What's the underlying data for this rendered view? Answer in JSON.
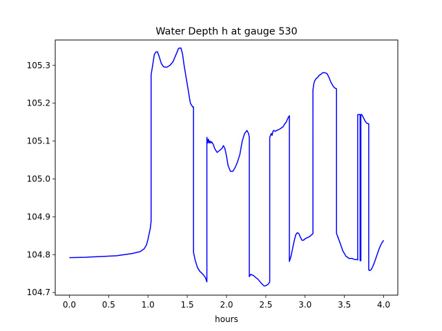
{
  "chart_data": {
    "type": "line",
    "title": "Water Depth h at gauge 530",
    "xlabel": "hours",
    "ylabel": "",
    "xlim": [
      -0.18,
      4.18
    ],
    "ylim": [
      104.693,
      105.367
    ],
    "xticks": [
      0.0,
      0.5,
      1.0,
      1.5,
      2.0,
      2.5,
      3.0,
      3.5,
      4.0
    ],
    "xtick_labels": [
      "0.0",
      "0.5",
      "1.0",
      "1.5",
      "2.0",
      "2.5",
      "3.0",
      "3.5",
      "4.0"
    ],
    "yticks": [
      104.7,
      104.8,
      104.9,
      105.0,
      105.1,
      105.2,
      105.3
    ],
    "ytick_labels": [
      "104.7",
      "104.8",
      "104.9",
      "105.0",
      "105.1",
      "105.2",
      "105.3"
    ],
    "grid": false,
    "series": [
      {
        "color": "#0000ff",
        "x": [
          0.0,
          0.2,
          0.4,
          0.6,
          0.7,
          0.8,
          0.9,
          0.95,
          0.98,
          1.0,
          1.03,
          1.04,
          1.04,
          1.06,
          1.08,
          1.1,
          1.12,
          1.14,
          1.17,
          1.2,
          1.24,
          1.28,
          1.32,
          1.36,
          1.39,
          1.42,
          1.44,
          1.46,
          1.5,
          1.54,
          1.57,
          1.58,
          1.58,
          1.6,
          1.63,
          1.66,
          1.7,
          1.73,
          1.75,
          1.75,
          1.76,
          1.77,
          1.78,
          1.79,
          1.8,
          1.81,
          1.83,
          1.85,
          1.88,
          1.91,
          1.94,
          1.96,
          1.98,
          2.0,
          2.02,
          2.05,
          2.08,
          2.11,
          2.14,
          2.17,
          2.2,
          2.23,
          2.26,
          2.28,
          2.29,
          2.29,
          2.31,
          2.34,
          2.37,
          2.4,
          2.44,
          2.48,
          2.5,
          2.53,
          2.55,
          2.55,
          2.56,
          2.57,
          2.58,
          2.59,
          2.6,
          2.62,
          2.64,
          2.66,
          2.68,
          2.7,
          2.72,
          2.74,
          2.76,
          2.78,
          2.8,
          2.8,
          2.82,
          2.84,
          2.86,
          2.88,
          2.9,
          2.92,
          2.94,
          2.96,
          2.98,
          3.0,
          3.03,
          3.06,
          3.08,
          3.1,
          3.1,
          3.11,
          3.12,
          3.14,
          3.16,
          3.18,
          3.2,
          3.22,
          3.24,
          3.26,
          3.28,
          3.3,
          3.33,
          3.36,
          3.38,
          3.4,
          3.4,
          3.42,
          3.45,
          3.48,
          3.52,
          3.56,
          3.6,
          3.63,
          3.66,
          3.67,
          3.67,
          3.68,
          3.7,
          3.7,
          3.71,
          3.71,
          3.72,
          3.74,
          3.76,
          3.78,
          3.8,
          3.81,
          3.81,
          3.82,
          3.84,
          3.86,
          3.88,
          3.9,
          3.92,
          3.94,
          3.96,
          3.98,
          4.0
        ],
        "y": [
          104.792,
          104.793,
          104.795,
          104.797,
          104.8,
          104.803,
          104.808,
          104.815,
          104.825,
          104.84,
          104.87,
          104.888,
          105.275,
          105.3,
          105.328,
          105.335,
          105.336,
          105.325,
          105.305,
          105.296,
          105.295,
          105.3,
          105.31,
          105.33,
          105.345,
          105.346,
          105.33,
          105.3,
          105.25,
          105.2,
          105.19,
          105.19,
          104.806,
          104.786,
          104.766,
          104.756,
          104.748,
          104.74,
          104.728,
          105.11,
          105.095,
          105.105,
          105.095,
          105.1,
          105.095,
          105.098,
          105.092,
          105.08,
          105.07,
          105.075,
          105.08,
          105.088,
          105.08,
          105.06,
          105.035,
          105.02,
          105.02,
          105.03,
          105.045,
          105.065,
          105.1,
          105.12,
          105.128,
          105.12,
          105.11,
          104.742,
          104.748,
          104.745,
          104.74,
          104.735,
          104.725,
          104.717,
          104.718,
          104.722,
          104.728,
          105.11,
          105.115,
          105.12,
          105.115,
          105.125,
          105.128,
          105.126,
          105.128,
          105.13,
          105.132,
          105.135,
          105.138,
          105.145,
          105.15,
          105.16,
          105.167,
          104.782,
          104.795,
          104.815,
          104.835,
          104.852,
          104.858,
          104.856,
          104.846,
          104.838,
          104.838,
          104.842,
          104.845,
          104.848,
          104.852,
          104.855,
          105.235,
          105.25,
          105.258,
          105.265,
          105.268,
          105.274,
          105.276,
          105.28,
          105.281,
          105.28,
          105.278,
          105.27,
          105.255,
          105.244,
          105.24,
          105.238,
          104.856,
          104.845,
          104.828,
          104.81,
          104.796,
          104.79,
          104.79,
          104.787,
          104.787,
          104.786,
          105.17,
          105.17,
          105.17,
          104.784,
          104.784,
          105.17,
          105.17,
          105.163,
          105.154,
          105.148,
          105.146,
          105.146,
          104.76,
          104.758,
          104.76,
          104.768,
          104.778,
          104.79,
          104.802,
          104.814,
          104.824,
          104.832,
          104.838
        ]
      }
    ]
  }
}
